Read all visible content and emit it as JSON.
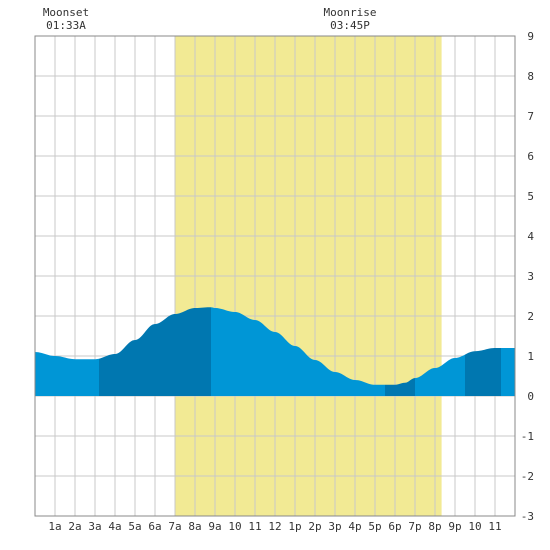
{
  "chart_data": {
    "type": "area",
    "moon_events": [
      {
        "label": "Moonset",
        "time": "01:33A",
        "hour": 1.55
      },
      {
        "label": "Moonrise",
        "time": "03:45P",
        "hour": 15.75
      }
    ],
    "daylight": {
      "start_hour": 7.0,
      "end_hour": 20.33
    },
    "x_tick_labels": [
      "1a",
      "2a",
      "3a",
      "4a",
      "5a",
      "6a",
      "7a",
      "8a",
      "9a",
      "10",
      "11",
      "12",
      "1p",
      "2p",
      "3p",
      "4p",
      "5p",
      "6p",
      "7p",
      "8p",
      "9p",
      "10",
      "11"
    ],
    "xlim": [
      0,
      24
    ],
    "ylim": [
      -3,
      9
    ],
    "y_ticks": [
      -3,
      -2,
      -1,
      0,
      1,
      2,
      3,
      4,
      5,
      6,
      7,
      8,
      9
    ],
    "series": [
      {
        "x": [
          0,
          1,
          2,
          3,
          4,
          5,
          6,
          7,
          8,
          8.8,
          9,
          10,
          11,
          12,
          13,
          14,
          15,
          16,
          17,
          18,
          18.5,
          19,
          20,
          21,
          22,
          23,
          24
        ],
        "y": [
          1.1,
          1.0,
          0.92,
          0.92,
          1.05,
          1.4,
          1.8,
          2.05,
          2.2,
          2.22,
          2.2,
          2.1,
          1.9,
          1.6,
          1.25,
          0.9,
          0.6,
          0.4,
          0.28,
          0.28,
          0.33,
          0.45,
          0.7,
          0.95,
          1.12,
          1.2,
          1.2
        ]
      }
    ],
    "bands": [
      {
        "start": 0,
        "end": 3.2,
        "shade": "light"
      },
      {
        "start": 3.2,
        "end": 8.8,
        "shade": "dark"
      },
      {
        "start": 8.8,
        "end": 17.5,
        "shade": "light"
      },
      {
        "start": 17.5,
        "end": 19.0,
        "shade": "dark"
      },
      {
        "start": 19.0,
        "end": 21.5,
        "shade": "light"
      },
      {
        "start": 21.5,
        "end": 23.3,
        "shade": "dark"
      },
      {
        "start": 23.3,
        "end": 24,
        "shade": "light"
      }
    ],
    "grid": true,
    "colors": {
      "daylight": "#f2ea94",
      "tide_light": "#0096d6",
      "tide_dark": "#0077b0",
      "grid": "#c8c8c8",
      "axis": "#666666"
    }
  }
}
